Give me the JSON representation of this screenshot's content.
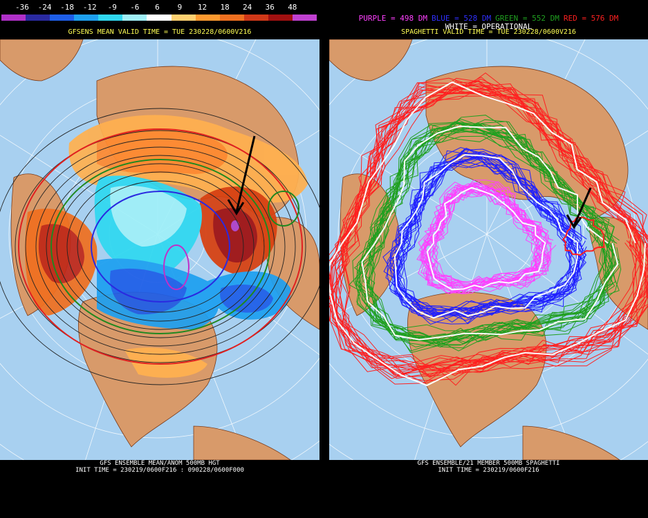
{
  "left": {
    "colorbar_labels": [
      "-36",
      "-24",
      "-18",
      "-12",
      "-9",
      "-6",
      "6",
      "9",
      "12",
      "18",
      "24",
      "36",
      "48"
    ],
    "colorbar_colors": [
      "#b030c8",
      "#2a2aa0",
      "#1e5ee8",
      "#1ea0f0",
      "#30d8f0",
      "#a0f0f8",
      "#ffffff",
      "#ffd070",
      "#ff9a30",
      "#f07020",
      "#d03818",
      "#a01010",
      "#c040d0"
    ],
    "title": "GFSENS MEAN VALID TIME = TUE 230228/0600V216",
    "footer_line1": "GFS ENSEMBLE MEAN/ANOM 500MB HGT",
    "footer_line2": "INIT TIME = 230219/0600F216 : 090228/0600F000"
  },
  "right": {
    "legend": [
      {
        "text": "PURPLE = 498 DM",
        "color": "#ff40ff"
      },
      {
        "text": "BLUE = 528 DM",
        "color": "#3030ff"
      },
      {
        "text": "GREEN = 552 DM",
        "color": "#20a020"
      },
      {
        "text": "RED = 576 DM",
        "color": "#ff2020"
      }
    ],
    "legend_operational": "WHITE = OPERATIONAL",
    "title": "SPAGHETTI VALID TIME = TUE 230228/0600V216",
    "footer_line1": "GFS ENSEMBLE/21 MEMBER 500MB SPAGHETTI",
    "footer_line2": "INIT TIME = 230219/0600F216"
  },
  "colors": {
    "ocean": "#a8d0f0",
    "land": "#d89a6a",
    "graticule": "#ffffff",
    "arrow": "#000000"
  }
}
